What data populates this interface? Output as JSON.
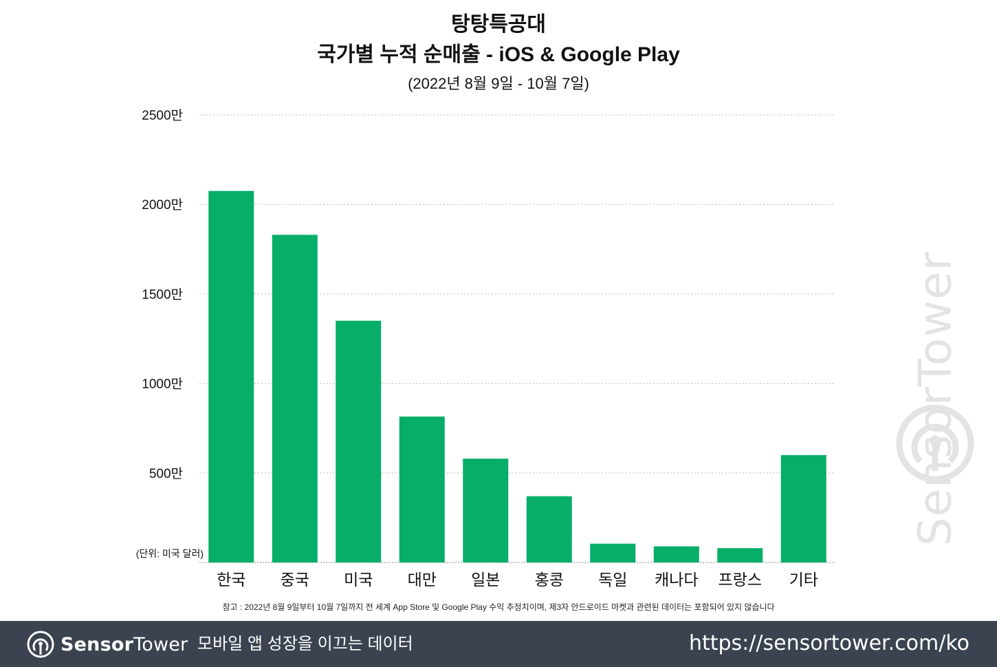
{
  "chart_data": {
    "type": "bar",
    "title": "탕탕특공대",
    "subtitle_main": "국가별 누적 순매출 - iOS & Google Play",
    "date_range": "(2022년 8월 9일 - 10월 7일)",
    "unit_label": "(단위: 미국 달러)",
    "categories": [
      "한국",
      "중국",
      "미국",
      "대만",
      "일본",
      "홍콩",
      "독일",
      "캐나다",
      "프랑스",
      "기타"
    ],
    "values": [
      20750000,
      18300000,
      13500000,
      8150000,
      5800000,
      3700000,
      1050000,
      900000,
      800000,
      6000000
    ],
    "ylim": [
      0,
      25000000
    ],
    "yticks": [
      {
        "value": 0,
        "label": ""
      },
      {
        "value": 5000000,
        "label": "500만"
      },
      {
        "value": 10000000,
        "label": "1000만"
      },
      {
        "value": 15000000,
        "label": "1500만"
      },
      {
        "value": 20000000,
        "label": "2000만"
      },
      {
        "value": 25000000,
        "label": "2500만"
      }
    ],
    "bar_color": "#06ae67",
    "grid": "dotted horizontal",
    "xlabel": "",
    "ylabel": ""
  },
  "footnote": "참고 : 2022년 8월 9일부터 10월 7일까지 전 세계 App Store 및 Google Play 수익 추정치이며, 제3자 안드로이드 마켓과 관련된 데이터는 포함되어 있지 않습니다",
  "watermark": {
    "text": "SensorTower",
    "icon": "sensortower-logo-icon"
  },
  "footer": {
    "brand_bold": "Sensor",
    "brand_light": "Tower",
    "tagline": "모바일 앱 성장을 이끄는 데이터",
    "url": "https://sensortower.com/ko",
    "background": "#3b4350"
  }
}
